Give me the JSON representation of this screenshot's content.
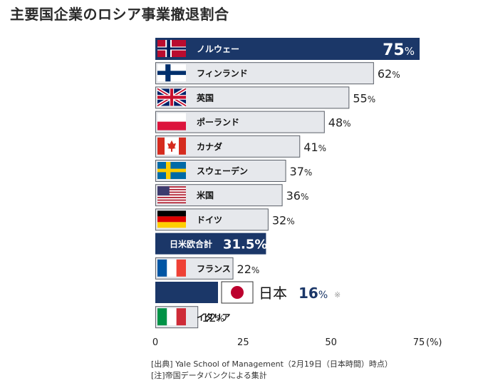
{
  "page": {
    "title": "主要国企業のロシア事業撤退割合",
    "source_note": "[出典] Yale School of Management（2月19日（日本時間）時点）",
    "note": "[注]帝国データバンクによる集計"
  },
  "chart_data": {
    "type": "bar",
    "orientation": "horizontal",
    "title": "主要国企業のロシア事業撤退割合",
    "xlabel": "(%)",
    "xlim": [
      0,
      75
    ],
    "xticks": [
      0,
      25,
      50,
      75
    ],
    "x_unit_label": "(%)",
    "categories": [
      "ノルウェー",
      "フィンランド",
      "英国",
      "ポーランド",
      "カナダ",
      "スウェーデン",
      "米国",
      "ドイツ",
      "日米欧合計",
      "フランス",
      "日本",
      "イタリア"
    ],
    "values": [
      75,
      62,
      55,
      48,
      41,
      37,
      36,
      32,
      31.5,
      22,
      16,
      12
    ],
    "value_labels": [
      "75",
      "62",
      "55",
      "48",
      "41",
      "37",
      "36",
      "32",
      "31.5",
      "22",
      "16",
      "12"
    ],
    "value_suffix": "%",
    "flags": [
      "norway-flag",
      "finland-flag",
      "uk-flag",
      "poland-flag",
      "canada-flag",
      "sweden-flag",
      "usa-flag",
      "germany-flag",
      "",
      "france-flag",
      "japan-flag",
      "italy-flag"
    ],
    "highlighted": [
      "ノルウェー",
      "日米欧合計",
      "日本"
    ],
    "japan_mark": "※",
    "colors": {
      "highlight": "#1b3768",
      "bar_fill": "#e6e8ec",
      "bar_stroke": "#5a5f68",
      "text": "#222222"
    }
  }
}
